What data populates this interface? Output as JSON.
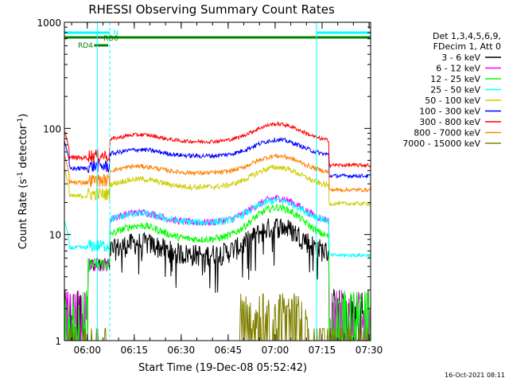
{
  "chart_data": {
    "type": "line",
    "title": "RHESSI Observing Summary Count Rates",
    "xlabel": "Start Time (19-Dec-08 05:52:42)",
    "ylabel_main": "Count Rate (s",
    "ylabel_sup1": "-1",
    "ylabel_mid": " detector",
    "ylabel_sup2": "-1",
    "ylabel_end": ")",
    "y_scale": "log",
    "ylim": [
      1,
      1000
    ],
    "x_range_minutes": [
      0,
      97.8
    ],
    "x_ticks": [
      {
        "label": "06:00",
        "minute": 7.3
      },
      {
        "label": "06:15",
        "minute": 22.3
      },
      {
        "label": "06:30",
        "minute": 37.3
      },
      {
        "label": "06:45",
        "minute": 52.3
      },
      {
        "label": "07:00",
        "minute": 67.3
      },
      {
        "label": "07:15",
        "minute": 82.3
      },
      {
        "label": "07:30",
        "minute": 97.3
      }
    ],
    "y_ticks": [
      {
        "label": "1",
        "value": 1
      },
      {
        "label": "10",
        "value": 10
      },
      {
        "label": "100",
        "value": 100
      },
      {
        "label": "1000",
        "value": 1000
      }
    ],
    "legend_header": [
      "Det 1,3,4,5,6,9,",
      "FDecim 1, Att 0"
    ],
    "series": [
      {
        "name": "3 - 6 keV",
        "color": "#000000",
        "base": 6.5,
        "peak": 12,
        "pre": 0,
        "noise": 0.06
      },
      {
        "name": "6 - 12 keV",
        "color": "#ff00ff",
        "base": 13,
        "peak": 22,
        "pre": 0,
        "noise": 0.02
      },
      {
        "name": "12 - 25 keV",
        "color": "#00ff00",
        "base": 9,
        "peak": 18,
        "pre": 0,
        "noise": 0.02
      },
      {
        "name": "25 - 50 keV",
        "color": "#00ffff",
        "base": 13,
        "peak": 21,
        "pre": 7.5,
        "noise": 0.02
      },
      {
        "name": "50 - 100 keV",
        "color": "#cccc00",
        "base": 28,
        "peak": 43,
        "pre": 23,
        "noise": 0.015
      },
      {
        "name": "100 - 300 keV",
        "color": "#0000ff",
        "base": 55,
        "peak": 78,
        "pre": 42,
        "noise": 0.012
      },
      {
        "name": "300 - 800 keV",
        "color": "#ff0000",
        "base": 75,
        "peak": 110,
        "pre": 53,
        "noise": 0.01
      },
      {
        "name": "800 - 7000 keV",
        "color": "#ff8000",
        "base": 38,
        "peak": 55,
        "pre": 31,
        "noise": 0.012
      },
      {
        "name": "7000 - 15000 keV",
        "color": "#808000",
        "base": 1,
        "peak": 2.5,
        "pre": 0,
        "noise": 0.0
      }
    ],
    "flags": [
      {
        "label": "N",
        "color": "#00ffff",
        "segments": [
          [
            0,
            14.5
          ],
          [
            80.5,
            97.8
          ]
        ]
      },
      {
        "label": "RD0",
        "color": "#008000",
        "segments": [
          [
            0,
            97.8
          ]
        ]
      },
      {
        "label": "RD4",
        "color": "#008000",
        "segments": [
          [
            9.5,
            14
          ]
        ]
      }
    ],
    "night_boundaries_minutes": [
      10.5,
      14.5,
      80.5,
      97.8
    ],
    "saa_gap_minutes": [
      7.5,
      10.5
    ],
    "timestamp": "16-Oct-2021 08:11"
  }
}
